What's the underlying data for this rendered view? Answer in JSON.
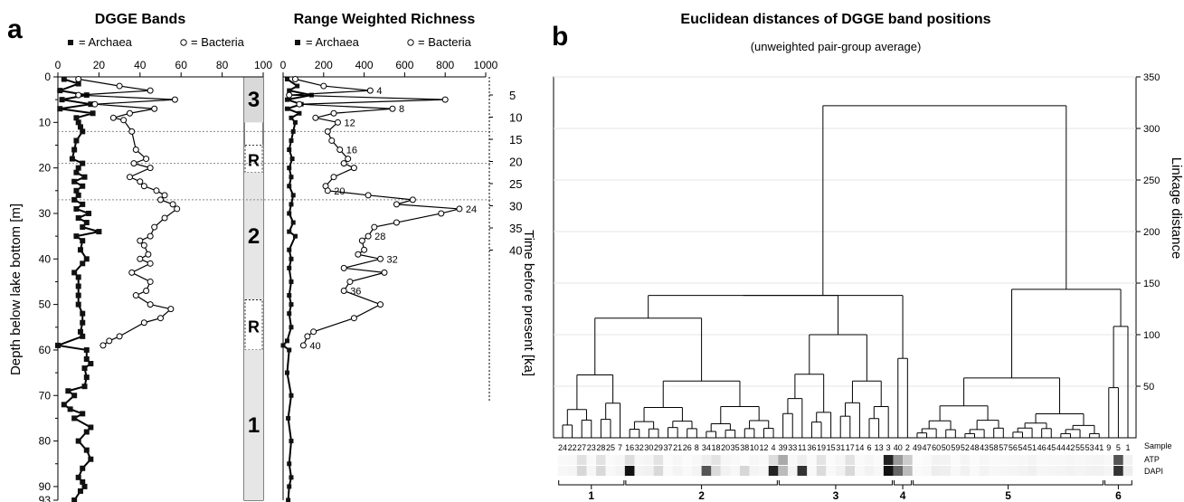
{
  "panel_a": {
    "letter": "a",
    "dgge_title": "DGGE Bands",
    "rwr_title": "Range Weighted Richness",
    "legend_archaea": "= Archaea",
    "legend_bacteria": "= Bacteria",
    "y_label": "Depth below lake bottom [m]",
    "time_label": "Time before present [ka]",
    "zones": [
      "3",
      "R",
      "2",
      "R",
      "1"
    ]
  },
  "panel_b": {
    "letter": "b",
    "title": "Euclidean distances of DGGE band positions",
    "subtitle": "(unweighted pair-group average)",
    "y_label": "Linkage distance",
    "row_labels": [
      "Sample",
      "ATP",
      "DAPI"
    ],
    "cluster_labels": [
      "1",
      "2",
      "3",
      "4",
      "5",
      "6"
    ],
    "sample_order": [
      "24",
      "22",
      "27",
      "23",
      "28",
      "25",
      "7",
      "16",
      "32",
      "30",
      "29",
      "37",
      "21",
      "26",
      "8",
      "34",
      "18",
      "20",
      "35",
      "38",
      "10",
      "12",
      "4",
      "39",
      "33",
      "11",
      "36",
      "19",
      "15",
      "31",
      "17",
      "14",
      "6",
      "13",
      "3",
      "40",
      "2",
      "49",
      "47",
      "60",
      "50",
      "59",
      "52",
      "48",
      "43",
      "58",
      "57",
      "56",
      "54",
      "51",
      "46",
      "45",
      "44",
      "42",
      "55",
      "53",
      "41",
      "9",
      "5",
      "1"
    ]
  },
  "chart_data": [
    {
      "type": "line",
      "title": "DGGE Bands",
      "xlabel": "",
      "ylabel": "Depth below lake bottom [m]",
      "xlim": [
        0,
        100
      ],
      "ylim": [
        93,
        0
      ],
      "x_ticks": [
        0,
        20,
        40,
        60,
        80,
        100
      ],
      "y_ticks": [
        0,
        10,
        20,
        30,
        40,
        50,
        60,
        70,
        80,
        90,
        93
      ],
      "zone_boundaries_depth": [
        12,
        19,
        27
      ],
      "zones": [
        {
          "label": "3",
          "from": 0,
          "to": 10
        },
        {
          "label": "R",
          "from": 15,
          "to": 21
        },
        {
          "label": "2",
          "from": 21,
          "to": 49
        },
        {
          "label": "R",
          "from": 49,
          "to": 60
        },
        {
          "label": "1",
          "from": 60,
          "to": 93
        }
      ],
      "series": [
        {
          "name": "Archaea",
          "points": [
            [
              3,
              0.5
            ],
            [
              10,
              1.5
            ],
            [
              1,
              3
            ],
            [
              14,
              4
            ],
            [
              2,
              5
            ],
            [
              16,
              6
            ],
            [
              1,
              7
            ],
            [
              17,
              8
            ],
            [
              9,
              9
            ],
            [
              10,
              10
            ],
            [
              11,
              11
            ],
            [
              12,
              12
            ],
            [
              9,
              14
            ],
            [
              8,
              16
            ],
            [
              7,
              18
            ],
            [
              12,
              19
            ],
            [
              10,
              20
            ],
            [
              9,
              21
            ],
            [
              13,
              22
            ],
            [
              8,
              23
            ],
            [
              12,
              24
            ],
            [
              9,
              25
            ],
            [
              10,
              26
            ],
            [
              8,
              27
            ],
            [
              12,
              28
            ],
            [
              9,
              29
            ],
            [
              15,
              30
            ],
            [
              10,
              31
            ],
            [
              14,
              32
            ],
            [
              12,
              33
            ],
            [
              20,
              34
            ],
            [
              9,
              35
            ],
            [
              12,
              36
            ],
            [
              11,
              38
            ],
            [
              14,
              40
            ],
            [
              12,
              41
            ],
            [
              8,
              43
            ],
            [
              10,
              44
            ],
            [
              10,
              46
            ],
            [
              10,
              48
            ],
            [
              10,
              50
            ],
            [
              12,
              52
            ],
            [
              12,
              54
            ],
            [
              11,
              56
            ],
            [
              12,
              57
            ],
            [
              0,
              59
            ],
            [
              14,
              60
            ],
            [
              14,
              62
            ],
            [
              16,
              63
            ],
            [
              13,
              64
            ],
            [
              14,
              66
            ],
            [
              13,
              68
            ],
            [
              5,
              69
            ],
            [
              8,
              70
            ],
            [
              3,
              72
            ],
            [
              6,
              73
            ],
            [
              12,
              74
            ],
            [
              8,
              75
            ],
            [
              16,
              77
            ],
            [
              14,
              78
            ],
            [
              10,
              80
            ],
            [
              14,
              82
            ],
            [
              16,
              84
            ],
            [
              12,
              86
            ],
            [
              10,
              88
            ],
            [
              12,
              89
            ],
            [
              13,
              90
            ],
            [
              11,
              91
            ],
            [
              8,
              93
            ]
          ]
        },
        {
          "name": "Bacteria",
          "points": [
            [
              10,
              0.5
            ],
            [
              30,
              2
            ],
            [
              45,
              3
            ],
            [
              10,
              4
            ],
            [
              57,
              5
            ],
            [
              18,
              6
            ],
            [
              47,
              7
            ],
            [
              35,
              8
            ],
            [
              27,
              9
            ],
            [
              32,
              9.5
            ],
            [
              36,
              12
            ],
            [
              38,
              16
            ],
            [
              43,
              18
            ],
            [
              37,
              19
            ],
            [
              45,
              20
            ],
            [
              35,
              22
            ],
            [
              40,
              23
            ],
            [
              42,
              24
            ],
            [
              48,
              25
            ],
            [
              52,
              26
            ],
            [
              50,
              27
            ],
            [
              56,
              28
            ],
            [
              58,
              29
            ],
            [
              52,
              31
            ],
            [
              47,
              33
            ],
            [
              45,
              35
            ],
            [
              40,
              36
            ],
            [
              42,
              37
            ],
            [
              44,
              39
            ],
            [
              40,
              40
            ],
            [
              45,
              41
            ],
            [
              36,
              43
            ],
            [
              45,
              45
            ],
            [
              43,
              47
            ],
            [
              38,
              48
            ],
            [
              45,
              50
            ],
            [
              55,
              51
            ],
            [
              50,
              53
            ],
            [
              42,
              54
            ],
            [
              30,
              57
            ],
            [
              25,
              58
            ],
            [
              22,
              59
            ]
          ]
        }
      ]
    },
    {
      "type": "line",
      "title": "Range Weighted Richness",
      "xlabel": "",
      "ylabel": "Time before present [ka]",
      "xlim": [
        0,
        1000
      ],
      "x_ticks": [
        0,
        200,
        400,
        600,
        800,
        1000
      ],
      "time_ticks": [
        5,
        10,
        15,
        20,
        25,
        30,
        35,
        40
      ],
      "series": [
        {
          "name": "Archaea",
          "points": [
            [
              20,
              0.5
            ],
            [
              70,
              2
            ],
            [
              30,
              3
            ],
            [
              140,
              4
            ],
            [
              20,
              5
            ],
            [
              90,
              6
            ],
            [
              20,
              7
            ],
            [
              80,
              8
            ],
            [
              40,
              9
            ],
            [
              60,
              10
            ],
            [
              50,
              12
            ],
            [
              40,
              14
            ],
            [
              30,
              16
            ],
            [
              45,
              18
            ],
            [
              30,
              20
            ],
            [
              40,
              22
            ],
            [
              30,
              24
            ],
            [
              50,
              26
            ],
            [
              40,
              28
            ],
            [
              30,
              30
            ],
            [
              50,
              32
            ],
            [
              30,
              34
            ],
            [
              60,
              35
            ],
            [
              30,
              38
            ],
            [
              40,
              40
            ],
            [
              30,
              42
            ],
            [
              40,
              45
            ],
            [
              30,
              48
            ],
            [
              40,
              50
            ],
            [
              30,
              52
            ],
            [
              40,
              55
            ],
            [
              20,
              58
            ],
            [
              0,
              59
            ],
            [
              30,
              60
            ],
            [
              20,
              65
            ],
            [
              40,
              70
            ],
            [
              25,
              75
            ],
            [
              40,
              80
            ],
            [
              30,
              85
            ],
            [
              40,
              88
            ],
            [
              30,
              90
            ],
            [
              25,
              93
            ]
          ]
        },
        {
          "name": "Bacteria",
          "points": [
            [
              60,
              0.5
            ],
            [
              200,
              2
            ],
            [
              430,
              3
            ],
            [
              30,
              4
            ],
            [
              800,
              5
            ],
            [
              80,
              6
            ],
            [
              540,
              7
            ],
            [
              250,
              8
            ],
            [
              160,
              9
            ],
            [
              270,
              10
            ],
            [
              220,
              12
            ],
            [
              240,
              14
            ],
            [
              280,
              16
            ],
            [
              320,
              18
            ],
            [
              300,
              19
            ],
            [
              350,
              20
            ],
            [
              250,
              22
            ],
            [
              210,
              24
            ],
            [
              220,
              25
            ],
            [
              420,
              26
            ],
            [
              640,
              27
            ],
            [
              560,
              28
            ],
            [
              870,
              29
            ],
            [
              780,
              30
            ],
            [
              560,
              32
            ],
            [
              450,
              33
            ],
            [
              420,
              35
            ],
            [
              390,
              36
            ],
            [
              400,
              38
            ],
            [
              370,
              39
            ],
            [
              480,
              40
            ],
            [
              300,
              42
            ],
            [
              500,
              43
            ],
            [
              330,
              45
            ],
            [
              300,
              47
            ],
            [
              480,
              50
            ],
            [
              350,
              53
            ],
            [
              150,
              56
            ],
            [
              120,
              57
            ],
            [
              100,
              59
            ]
          ]
        }
      ],
      "annotations": [
        {
          "label": "4",
          "x": 430,
          "y": 3
        },
        {
          "label": "8",
          "x": 540,
          "y": 7
        },
        {
          "label": "12",
          "x": 270,
          "y": 10
        },
        {
          "label": "16",
          "x": 280,
          "y": 16
        },
        {
          "label": "20",
          "x": 220,
          "y": 25
        },
        {
          "label": "24",
          "x": 870,
          "y": 29
        },
        {
          "label": "28",
          "x": 420,
          "y": 35
        },
        {
          "label": "32",
          "x": 480,
          "y": 40
        },
        {
          "label": "36",
          "x": 300,
          "y": 47
        },
        {
          "label": "40",
          "x": 100,
          "y": 59
        }
      ]
    },
    {
      "type": "dendrogram",
      "title": "Euclidean distances of DGGE band positions",
      "ylabel": "Linkage distance",
      "ylim": [
        0,
        350
      ],
      "y_ticks": [
        50,
        100,
        150,
        200,
        250,
        300,
        350
      ],
      "clusters": [
        {
          "label": "1",
          "samples": [
            "24",
            "22",
            "27",
            "23",
            "28",
            "25",
            "7"
          ]
        },
        {
          "label": "2",
          "samples": [
            "16",
            "32",
            "30",
            "29",
            "37",
            "21",
            "26",
            "8",
            "34",
            "18",
            "20",
            "35",
            "38",
            "10",
            "12",
            "4"
          ]
        },
        {
          "label": "3",
          "samples": [
            "39",
            "33",
            "11",
            "36",
            "19",
            "15",
            "31",
            "17",
            "14",
            "6",
            "13",
            "3"
          ]
        },
        {
          "label": "4",
          "samples": [
            "40",
            "2"
          ]
        },
        {
          "label": "5",
          "samples": [
            "49",
            "47",
            "60",
            "50",
            "59",
            "52",
            "48",
            "43",
            "58",
            "57",
            "56",
            "54",
            "51",
            "46",
            "45",
            "44",
            "42",
            "55",
            "53",
            "41"
          ]
        },
        {
          "label": "6",
          "samples": [
            "9",
            "5",
            "1"
          ]
        }
      ],
      "merge_heights": [
        {
          "between": [
            "1",
            "2"
          ],
          "height": 116
        },
        {
          "between": [
            "1-2",
            "3"
          ],
          "height": 138
        },
        {
          "between": [
            "1-2-3",
            "4"
          ],
          "height": 138
        },
        {
          "between": [
            "5",
            "6"
          ],
          "height": 144
        },
        {
          "between": [
            "1-2-3-4",
            "5-6"
          ],
          "height": 322
        },
        {
          "within": "3",
          "height": 100
        },
        {
          "within": "6",
          "height": 108
        },
        {
          "within": "5",
          "height": 58
        },
        {
          "within": "2",
          "height": 55
        },
        {
          "within": "1",
          "height": 61
        },
        {
          "within": "4",
          "height": 77
        }
      ]
    }
  ]
}
